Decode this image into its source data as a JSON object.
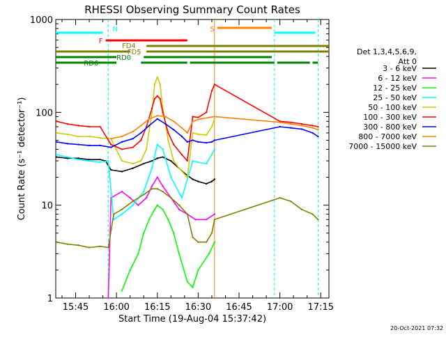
{
  "chart_data": {
    "type": "line",
    "title": "RHESSI Observing Summary Count Rates",
    "xlabel": "Start Time (19-Aug-04 15:37:42)",
    "ylabel": "Count Rate (s⁻¹ detector⁻¹)",
    "ylim": [
      1,
      1000
    ],
    "yscale": "log",
    "xlim": [
      "15:37:42",
      "17:18:00"
    ],
    "x_ticks": [
      "15:45",
      "16:00",
      "16:15",
      "16:30",
      "16:45",
      "17:00",
      "17:15"
    ],
    "y_ticks": [
      "1",
      "10",
      "100",
      "1000"
    ],
    "grid": false,
    "legend_title": [
      "Det 1,3,4,5,6,9,",
      "Att 0"
    ],
    "legend_position": "right",
    "timestamp": "20-Oct-2021 07:32",
    "series": [
      {
        "name": "3 - 6 keV",
        "color": "#000000",
        "x": [
          "15:38",
          "15:42",
          "15:46",
          "15:50",
          "15:54",
          "15:56",
          "15:58",
          "16:02",
          "16:06",
          "16:10",
          "16:13",
          "16:15",
          "16:17",
          "16:20",
          "16:25",
          "16:28",
          "16:30",
          "16:33",
          "16:35",
          "16:36"
        ],
        "y": [
          33,
          32,
          32,
          31,
          31,
          30,
          24,
          23,
          25,
          28,
          30,
          32,
          33,
          30,
          22,
          19,
          18,
          17,
          18,
          19
        ]
      },
      {
        "name": "6 - 12 keV",
        "color": "#ff00ff",
        "x": [
          "15:57",
          "15:58",
          "16:02",
          "16:05",
          "16:08",
          "16:11",
          "16:13",
          "16:15",
          "16:17",
          "16:20",
          "16:23",
          "16:26",
          "16:29",
          "16:33",
          "16:36"
        ],
        "y": [
          1,
          12,
          14,
          12,
          10,
          12,
          16,
          20,
          16,
          12,
          9,
          8,
          7,
          7,
          8
        ]
      },
      {
        "name": "12 - 25 keV",
        "color": "#00ff00",
        "x": [
          "16:02",
          "16:05",
          "16:08",
          "16:10",
          "16:12",
          "16:14",
          "16:15",
          "16:17",
          "16:19",
          "16:21",
          "16:23",
          "16:26",
          "16:28",
          "16:30",
          "16:34",
          "16:36"
        ],
        "y": [
          1.2,
          2,
          3,
          5,
          7,
          9,
          10,
          9,
          7,
          5,
          3,
          1.5,
          1.3,
          2,
          3,
          4
        ]
      },
      {
        "name": "25 - 50 keV",
        "color": "#00ffff",
        "x": [
          "15:38",
          "15:42",
          "15:46",
          "15:50",
          "15:54",
          "15:57",
          "15:59",
          "16:02",
          "16:06",
          "16:10",
          "16:13",
          "16:15",
          "16:17",
          "16:20",
          "16:24",
          "16:28",
          "16:30",
          "16:33",
          "16:35",
          "16:36"
        ],
        "y": [
          35,
          33,
          31,
          30,
          29,
          30,
          7,
          8,
          10,
          14,
          25,
          45,
          40,
          20,
          12,
          30,
          29,
          28,
          35,
          40
        ]
      },
      {
        "name": "50 - 100 keV",
        "color": "#cccc00",
        "x": [
          "15:38",
          "15:42",
          "15:46",
          "15:50",
          "15:54",
          "15:58",
          "16:02",
          "16:06",
          "16:09",
          "16:11",
          "16:13",
          "16:14",
          "16:15",
          "16:16",
          "16:17",
          "16:19",
          "16:21",
          "16:23",
          "16:26",
          "16:28",
          "16:30",
          "16:33",
          "16:35",
          "16:36"
        ],
        "y": [
          60,
          58,
          55,
          55,
          53,
          52,
          30,
          28,
          30,
          40,
          100,
          200,
          240,
          200,
          110,
          50,
          30,
          25,
          20,
          60,
          58,
          57,
          70,
          85
        ]
      },
      {
        "name": "100 - 300 keV",
        "color": "#ff0000",
        "x": [
          "15:38",
          "15:42",
          "15:46",
          "15:50",
          "15:54",
          "15:58",
          "16:02",
          "16:06",
          "16:09",
          "16:11",
          "16:13",
          "16:14",
          "16:15",
          "16:16",
          "16:17",
          "16:19",
          "16:21",
          "16:24",
          "16:26",
          "16:28",
          "16:30",
          "16:33",
          "16:35",
          "16:36",
          "17:00",
          "17:04",
          "17:08",
          "17:12",
          "17:14"
        ],
        "y": [
          80,
          75,
          72,
          70,
          70,
          45,
          40,
          42,
          50,
          70,
          110,
          140,
          150,
          140,
          100,
          60,
          45,
          35,
          30,
          90,
          88,
          100,
          170,
          200,
          80,
          78,
          75,
          72,
          70
        ]
      },
      {
        "name": "300 - 800 keV",
        "color": "#0000ff",
        "x": [
          "15:38",
          "15:42",
          "15:46",
          "15:50",
          "15:54",
          "15:58",
          "16:02",
          "16:06",
          "16:09",
          "16:12",
          "16:15",
          "16:18",
          "16:21",
          "16:24",
          "16:26",
          "16:28",
          "16:30",
          "16:33",
          "16:35",
          "16:36",
          "17:00",
          "17:04",
          "17:08",
          "17:12",
          "17:14"
        ],
        "y": [
          48,
          46,
          45,
          44,
          44,
          42,
          48,
          52,
          60,
          72,
          85,
          75,
          65,
          55,
          48,
          50,
          48,
          47,
          48,
          50,
          70,
          68,
          66,
          60,
          55
        ]
      },
      {
        "name": "800 - 7000 keV",
        "color": "#ff8000",
        "x": [
          "15:58",
          "16:02",
          "16:06",
          "16:09",
          "16:12",
          "16:15",
          "16:18",
          "16:21",
          "16:24",
          "16:26",
          "16:28",
          "16:31",
          "16:34",
          "16:36",
          "17:00",
          "17:04",
          "17:08",
          "17:12",
          "17:14"
        ],
        "y": [
          52,
          55,
          62,
          72,
          85,
          92,
          90,
          80,
          68,
          60,
          80,
          85,
          88,
          90,
          78,
          75,
          72,
          68,
          65
        ]
      },
      {
        "name": "7000 - 15000 keV",
        "color": "#808000",
        "x": [
          "15:38",
          "15:42",
          "15:46",
          "15:50",
          "15:54",
          "15:57",
          "15:59",
          "16:02",
          "16:06",
          "16:10",
          "16:13",
          "16:15",
          "16:17",
          "16:20",
          "16:23",
          "16:26",
          "16:28",
          "16:30",
          "16:33",
          "16:35",
          "16:36",
          "17:00",
          "17:04",
          "17:08",
          "17:12",
          "17:14"
        ],
        "y": [
          4,
          3.8,
          3.7,
          3.5,
          3.6,
          3.5,
          8,
          9,
          11,
          13,
          15,
          15,
          14,
          12,
          10,
          8,
          4.5,
          4,
          4,
          5,
          7,
          12,
          11,
          9,
          8,
          7
        ]
      }
    ],
    "flag_bars": [
      {
        "label": "N",
        "color": "#00ffff",
        "spans": [
          [
            "15:37:42",
            "15:55"
          ],
          [
            "16:58",
            "17:13"
          ]
        ]
      },
      {
        "label": "S",
        "color": "#ff8000",
        "spans": [
          [
            "16:37",
            "16:57"
          ]
        ]
      },
      {
        "label": "F",
        "color": "#ff0000",
        "spans": [
          [
            "15:56",
            "16:26"
          ]
        ]
      },
      {
        "label": "FD4",
        "color": "#808000",
        "spans": [
          [
            "16:11",
            "17:18"
          ]
        ]
      },
      {
        "label": "FD5",
        "color": "#808000",
        "spans": [
          [
            "15:37:42",
            "16:05"
          ],
          [
            "16:11",
            "17:18"
          ]
        ]
      },
      {
        "label": "RD0",
        "color": "#008000",
        "spans": [
          [
            "15:37:42",
            "16:00"
          ],
          [
            "16:10",
            "16:57"
          ]
        ]
      },
      {
        "label": "RD6",
        "color": "#008000",
        "spans": [
          [
            "15:37:42",
            "16:00"
          ],
          [
            "16:09",
            "16:26"
          ],
          [
            "16:27",
            "16:58"
          ],
          [
            "16:59",
            "17:11"
          ],
          [
            "17:12",
            "17:14"
          ]
        ]
      }
    ],
    "vertical_markers": [
      {
        "time": "15:57",
        "color": "#00ffff",
        "style": "dashed"
      },
      {
        "time": "16:36",
        "color": "#ff8000",
        "style": "solid"
      },
      {
        "time": "16:58",
        "color": "#00ffff",
        "style": "dashed"
      },
      {
        "time": "17:14",
        "color": "#00ffff",
        "style": "dashed"
      }
    ]
  }
}
